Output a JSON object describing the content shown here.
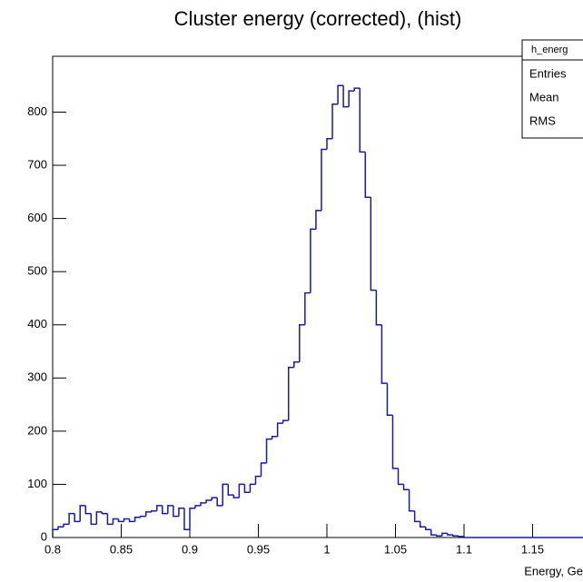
{
  "chart_data": {
    "type": "histogram",
    "title": "Cluster energy (corrected), (hist)",
    "x_label": "Energy, Ge",
    "color": "#1a1aa0",
    "bins": [
      0.8,
      0.804,
      0.808,
      0.812,
      0.816,
      0.82,
      0.824,
      0.828,
      0.832,
      0.836,
      0.84,
      0.844,
      0.848,
      0.852,
      0.856,
      0.86,
      0.864,
      0.868,
      0.872,
      0.876,
      0.88,
      0.884,
      0.888,
      0.892,
      0.896,
      0.9,
      0.904,
      0.908,
      0.912,
      0.916,
      0.92,
      0.924,
      0.928,
      0.932,
      0.936,
      0.94,
      0.944,
      0.948,
      0.952,
      0.956,
      0.96,
      0.964,
      0.968,
      0.972,
      0.976,
      0.98,
      0.984,
      0.988,
      0.992,
      0.996,
      1.0,
      1.004,
      1.008,
      1.012,
      1.016,
      1.02,
      1.024,
      1.028,
      1.032,
      1.036,
      1.04,
      1.044,
      1.048,
      1.052,
      1.056,
      1.06,
      1.064,
      1.068,
      1.072,
      1.076,
      1.08,
      1.084,
      1.088,
      1.092,
      1.096,
      1.1,
      1.104,
      1.108,
      1.112,
      1.116,
      1.12,
      1.124,
      1.128,
      1.132,
      1.136,
      1.14,
      1.144,
      1.148,
      1.152,
      1.156,
      1.16,
      1.164,
      1.168,
      1.172,
      1.176,
      1.18,
      1.184,
      1.188,
      1.192,
      1.196,
      1.2
    ],
    "values": [
      15,
      20,
      25,
      45,
      30,
      60,
      45,
      25,
      48,
      45,
      25,
      35,
      30,
      35,
      30,
      38,
      40,
      48,
      50,
      60,
      45,
      60,
      40,
      55,
      15,
      55,
      60,
      65,
      70,
      75,
      60,
      100,
      80,
      75,
      100,
      85,
      100,
      115,
      140,
      185,
      190,
      215,
      220,
      320,
      330,
      400,
      460,
      580,
      615,
      730,
      750,
      815,
      850,
      810,
      840,
      845,
      725,
      640,
      465,
      400,
      290,
      230,
      130,
      100,
      90,
      50,
      30,
      20,
      15,
      5,
      3,
      8,
      5,
      3,
      2,
      0,
      0,
      0,
      0,
      0,
      0,
      0,
      0,
      0,
      0,
      0,
      0,
      0,
      0,
      0,
      0,
      0,
      0,
      0,
      0,
      0,
      0,
      0,
      0,
      0
    ],
    "xlim": [
      0.8,
      1.2
    ],
    "ylim": [
      0,
      905
    ],
    "xticks": [
      0.8,
      0.85,
      0.9,
      0.95,
      1,
      1.05,
      1.1,
      1.15
    ],
    "yticks": [
      0,
      100,
      200,
      300,
      400,
      500,
      600,
      700,
      800
    ],
    "stats_box": {
      "title": "h_energ",
      "rows": [
        "Entries",
        "Mean",
        "RMS"
      ]
    }
  }
}
